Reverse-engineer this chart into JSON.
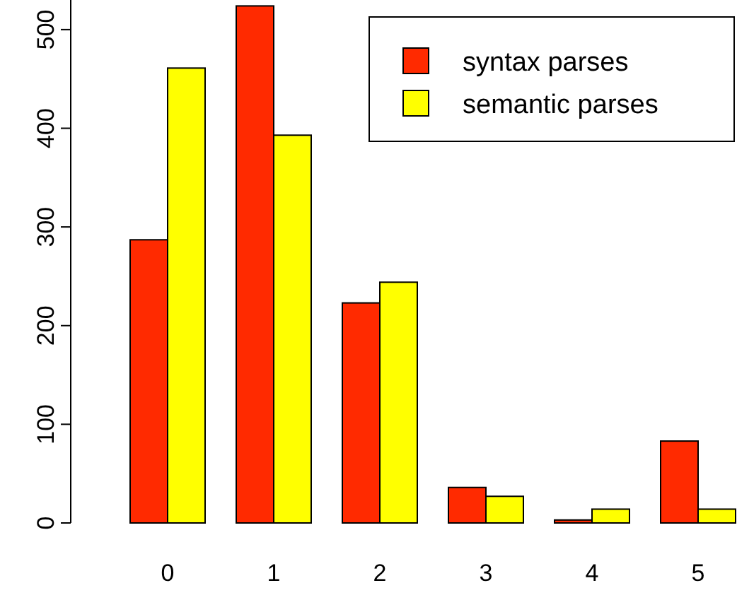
{
  "chart_data": {
    "type": "bar",
    "categories": [
      "0",
      "1",
      "2",
      "3",
      "4",
      "5"
    ],
    "series": [
      {
        "name": "syntax parses",
        "color": "#ff2a00",
        "values": [
          287,
          524,
          223,
          36,
          3,
          83
        ]
      },
      {
        "name": "semantic parses",
        "color": "#ffff00",
        "values": [
          461,
          393,
          244,
          27,
          14,
          14
        ]
      }
    ],
    "ylim": [
      0,
      530
    ],
    "yticks": [
      0,
      100,
      200,
      300,
      400,
      500
    ],
    "grid": false,
    "legend": "top right"
  }
}
